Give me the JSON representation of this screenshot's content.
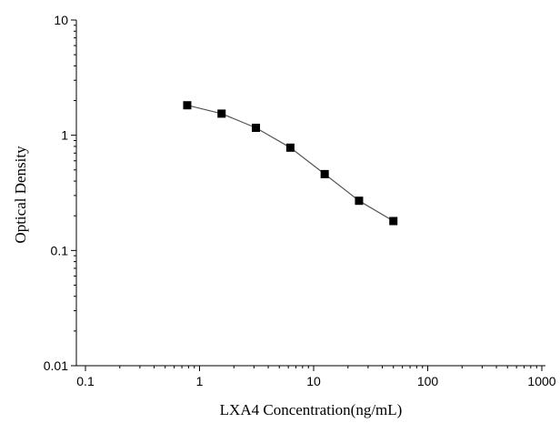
{
  "chart_data": {
    "type": "scatter",
    "title": "",
    "xlabel": "LXA4 Concentration(ng/mL)",
    "ylabel": "Optical Density",
    "xscale": "log",
    "yscale": "log",
    "xlim": [
      0.1,
      1000
    ],
    "ylim": [
      0.01,
      10
    ],
    "x_ticks": [
      "0.1",
      "1",
      "10",
      "100",
      "1000"
    ],
    "y_ticks": [
      "0.01",
      "0.1",
      "1",
      "10"
    ],
    "grid": false,
    "legend": "none",
    "line_color": "#555555",
    "marker_color": "#000000",
    "series": [
      {
        "x": [
          0.78,
          1.56,
          3.12,
          6.25,
          12.5,
          25,
          50
        ],
        "y": [
          1.82,
          1.54,
          1.16,
          0.78,
          0.46,
          0.27,
          0.18
        ]
      }
    ]
  }
}
